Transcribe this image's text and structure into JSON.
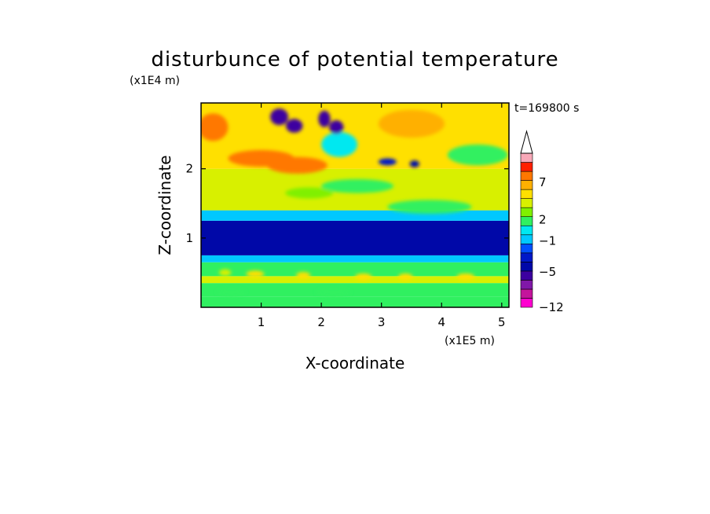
{
  "chart_data": {
    "type": "heatmap",
    "title": "disturbunce of potential temperature",
    "time_label": "t=169800 s",
    "xlabel": "X-coordinate",
    "ylabel": "Z-coordinate",
    "x_scale_label": "(x1E5 m)",
    "y_scale_label": "(x1E4 m)",
    "xlim": [
      0,
      5.12
    ],
    "ylim": [
      0,
      2.95
    ],
    "x_ticks": [
      1,
      2,
      3,
      4,
      5
    ],
    "y_ticks": [
      1,
      2
    ],
    "x_tick_labels": [
      "1",
      "2",
      "3",
      "4",
      "5"
    ],
    "y_tick_labels": [
      "1",
      "2"
    ],
    "colorbar": {
      "levels": [
        -12,
        -10,
        -8,
        -6,
        -5,
        -4,
        -3,
        -2,
        -1,
        0,
        1,
        2,
        3,
        4,
        5,
        7,
        9,
        11
      ],
      "colors": [
        "#ff00d0",
        "#c4149c",
        "#8018a8",
        "#3c00a0",
        "#0008a8",
        "#0018c8",
        "#0050ff",
        "#00c8ff",
        "#00e8f0",
        "#30f060",
        "#80f000",
        "#d8f000",
        "#ffe000",
        "#ffb000",
        "#ff7800",
        "#ff2000",
        "#f8a8b8"
      ],
      "extend": "max",
      "labels": [
        "7",
        "2",
        "−1",
        "−5",
        "−12"
      ]
    },
    "field_description": [
      {
        "z_range": [
          0.0,
          0.15
        ],
        "value_approx": 0.5
      },
      {
        "z_range": [
          0.15,
          0.35
        ],
        "value_approx": 0
      },
      {
        "z_range": [
          0.35,
          0.45
        ],
        "value_approx": 2.5
      },
      {
        "z_range": [
          0.45,
          0.65
        ],
        "value_approx": 0
      },
      {
        "z_range": [
          0.65,
          0.75
        ],
        "value_approx": -1.5
      },
      {
        "z_range": [
          0.75,
          1.25
        ],
        "value_approx": -5
      },
      {
        "z_range": [
          1.25,
          1.4
        ],
        "value_approx": -1.5
      },
      {
        "z_range": [
          1.4,
          2.0
        ],
        "value_approx": 2
      },
      {
        "z_range": [
          2.0,
          2.95
        ],
        "value_approx": 3
      }
    ]
  }
}
